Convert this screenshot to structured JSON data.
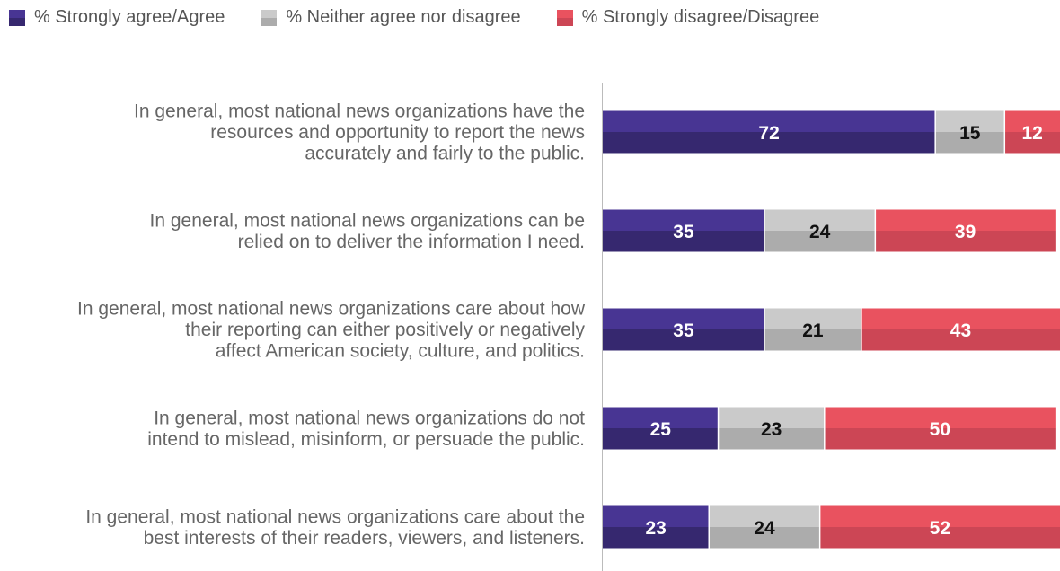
{
  "legend": [
    {
      "label": "% Strongly agree/Agree",
      "color": "#483593",
      "shade": "#36286f"
    },
    {
      "label": "% Neither agree nor disagree",
      "color": "#cacaca",
      "shade": "#acacac"
    },
    {
      "label": "% Strongly disagree/Disagree",
      "color": "#e9525f",
      "shade": "#cc4655"
    }
  ],
  "chart_data": {
    "type": "bar",
    "orientation": "horizontal",
    "stacked": true,
    "xlim": [
      0,
      100
    ],
    "categories": [
      [
        "In general, most national news organizations have the",
        "resources and opportunity to report the news",
        "accurately and fairly to the public."
      ],
      [
        "In general, most national news organizations can be",
        "relied on to deliver the information I need."
      ],
      [
        "In general, most national news organizations care about how",
        "their reporting can either positively or negatively",
        "affect American society, culture, and politics."
      ],
      [
        "In general, most national news organizations do not",
        "intend to mislead, misinform, or persuade the public."
      ],
      [
        "In general, most national news organizations care about the",
        "best interests of their readers, viewers, and listeners."
      ]
    ],
    "series": [
      {
        "name": "% Strongly agree/Agree",
        "values": [
          72,
          35,
          35,
          25,
          23
        ]
      },
      {
        "name": "% Neither agree nor disagree",
        "values": [
          15,
          24,
          21,
          23,
          24
        ]
      },
      {
        "name": "% Strongly disagree/Disagree",
        "values": [
          12,
          39,
          43,
          50,
          52
        ]
      }
    ],
    "grid": false,
    "legend_position": "top-left"
  }
}
